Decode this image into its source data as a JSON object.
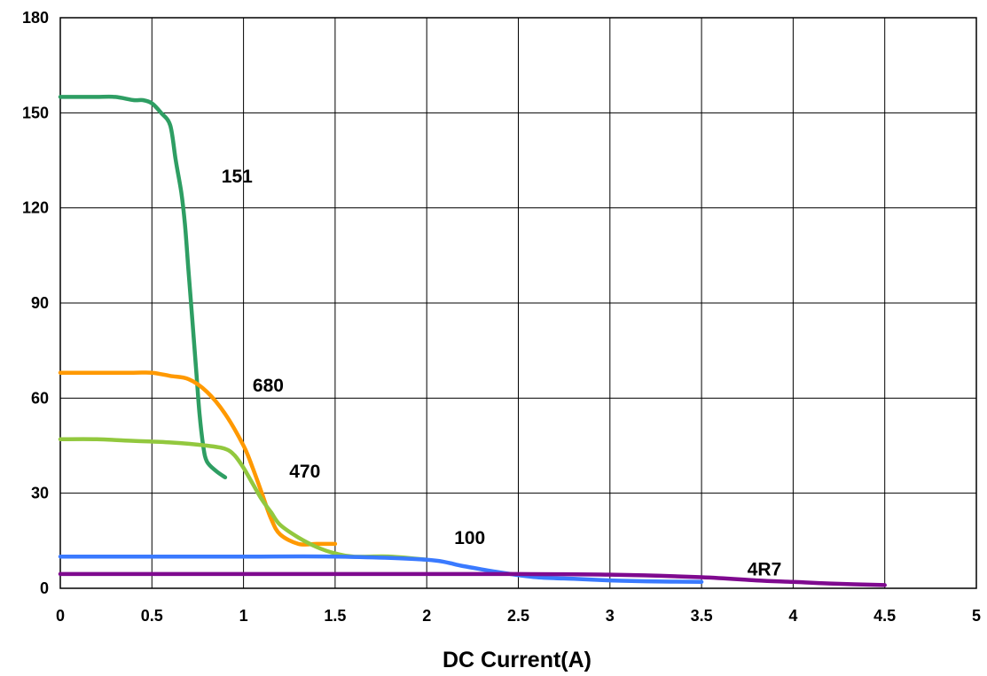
{
  "chart_data": {
    "type": "line",
    "title": "",
    "xlabel": "DC Current(A)",
    "ylabel": "",
    "xlim": [
      0,
      5
    ],
    "ylim": [
      0,
      180
    ],
    "x_ticks": [
      "0",
      "0.5",
      "1",
      "1.5",
      "2",
      "2.5",
      "3",
      "3.5",
      "4",
      "4.5",
      "5"
    ],
    "y_ticks": [
      "0",
      "30",
      "60",
      "90",
      "120",
      "150",
      "180"
    ],
    "grid": true,
    "legend": "none",
    "series": [
      {
        "name": "151",
        "color": "#2e9e63",
        "label_at": [
          0.88,
          128
        ],
        "x": [
          0,
          0.1,
          0.2,
          0.3,
          0.4,
          0.45,
          0.5,
          0.55,
          0.6,
          0.63,
          0.66,
          0.68,
          0.7,
          0.72,
          0.74,
          0.76,
          0.78,
          0.8,
          0.85,
          0.9
        ],
        "y": [
          155,
          155,
          155,
          155,
          154,
          154,
          153,
          150,
          146,
          135,
          125,
          115,
          100,
          85,
          70,
          55,
          45,
          40,
          37,
          35
        ]
      },
      {
        "name": "680",
        "color": "#ff9900",
        "label_at": [
          1.05,
          62
        ],
        "x": [
          0,
          0.2,
          0.4,
          0.5,
          0.6,
          0.7,
          0.8,
          0.9,
          1.0,
          1.05,
          1.1,
          1.15,
          1.2,
          1.3,
          1.4,
          1.5
        ],
        "y": [
          68,
          68,
          68,
          68,
          67,
          66,
          62,
          55,
          45,
          38,
          30,
          22,
          17,
          14,
          14,
          14
        ]
      },
      {
        "name": "470",
        "color": "#92c83e",
        "label_at": [
          1.25,
          35
        ],
        "x": [
          0,
          0.2,
          0.4,
          0.6,
          0.8,
          0.9,
          0.95,
          1.0,
          1.05,
          1.1,
          1.15,
          1.2,
          1.3,
          1.4,
          1.5,
          1.6,
          1.8,
          2.0
        ],
        "y": [
          47,
          47,
          46.5,
          46,
          45,
          44,
          42,
          38,
          33,
          28,
          24,
          20,
          16,
          13,
          11,
          10,
          10,
          9
        ]
      },
      {
        "name": "100",
        "color": "#3a7aff",
        "label_at": [
          2.15,
          14
        ],
        "x": [
          0,
          0.5,
          1.0,
          1.5,
          2.0,
          2.2,
          2.4,
          2.6,
          2.8,
          3.0,
          3.2,
          3.5
        ],
        "y": [
          10,
          10,
          10,
          10,
          9,
          7,
          5,
          3.5,
          3,
          2.5,
          2.2,
          2
        ]
      },
      {
        "name": "4R7",
        "color": "#7f0a8f",
        "label_at": [
          3.75,
          4
        ],
        "x": [
          0,
          0.5,
          1.0,
          1.5,
          2.0,
          2.5,
          3.0,
          3.5,
          3.8,
          4.0,
          4.2,
          4.5
        ],
        "y": [
          4.5,
          4.5,
          4.5,
          4.5,
          4.5,
          4.5,
          4.3,
          3.5,
          2.5,
          2,
          1.5,
          1
        ]
      }
    ]
  }
}
